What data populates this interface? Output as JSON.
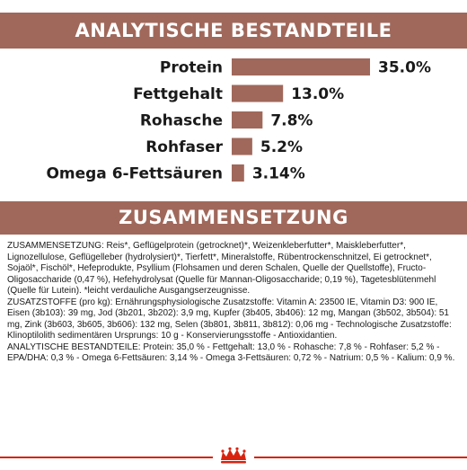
{
  "banners": {
    "analytical": "ANALYTISCHE BESTANDTEILE",
    "composition": "ZUSAMMENSETZUNG"
  },
  "chart_data": {
    "type": "bar",
    "orientation": "horizontal",
    "categories": [
      "Protein",
      "Fettgehalt",
      "Rohasche",
      "Rohfaser",
      "Omega 6-Fettsäuren"
    ],
    "values": [
      35.0,
      13.0,
      7.8,
      5.2,
      3.14
    ],
    "value_labels": [
      "35.0%",
      "13.0%",
      "7.8%",
      "5.2%",
      "3.14%"
    ],
    "xlim": [
      0,
      35.0
    ],
    "grid": false,
    "bar_color": "#a0685b"
  },
  "composition": {
    "ingredients": "ZUSAMMENSETZUNG: Reis*, Geflügelprotein (getrocknet)*, Weizenkleberfutter*, Maiskleberfutter*, Lignozellulose, Geflügelleber (hydrolysiert)*, Tierfett*, Mineralstoffe, Rübentrockenschnitzel, Ei getrocknet*, Sojaöl*, Fischöl*, Hefeprodukte, Psyllium (Flohsamen und deren Schalen, Quelle der Quellstoffe), Fructo-Oligosaccharide (0,47 %), Hefehydrolysat (Quelle für Mannan-Oligosaccharide; 0,19 %), Tagetesblütenmehl (Quelle für Lutein). *leicht verdauliche Ausgangserzeugnisse.",
    "additives": "ZUSATZSTOFFE (pro kg): Ernährungsphysiologische Zusatzstoffe: Vitamin A: 23500 IE, Vitamin D3: 900 IE, Eisen (3b103): 39 mg, Jod (3b201, 3b202): 3,9 mg, Kupfer (3b405, 3b406): 12 mg, Mangan (3b502, 3b504): 51 mg, Zink (3b603, 3b605, 3b606): 132 mg, Selen (3b801, 3b811, 3b812): 0,06 mg - Technologische Zusatzstoffe: Klinoptilolith sedimentären Ursprungs: 10 g - Konservierungsstoffe - Antioxidantien.",
    "analytical": "ANALYTISCHE BESTANDTEILE: Protein: 35,0 % - Fettgehalt: 13,0 % - Rohasche: 7,8 % - Rohfaser: 5,2 % - EPA/DHA: 0,3 % - Omega 6-Fettsäuren: 3,14 % - Omega 3-Fettsäuren: 0,72 % - Natrium: 0,5 % - Kalium: 0,9 %."
  },
  "colors": {
    "banner": "#a0685b",
    "accent_red": "#d9230f"
  },
  "logo": {
    "icon": "royal-canin-crown-logo-icon"
  }
}
